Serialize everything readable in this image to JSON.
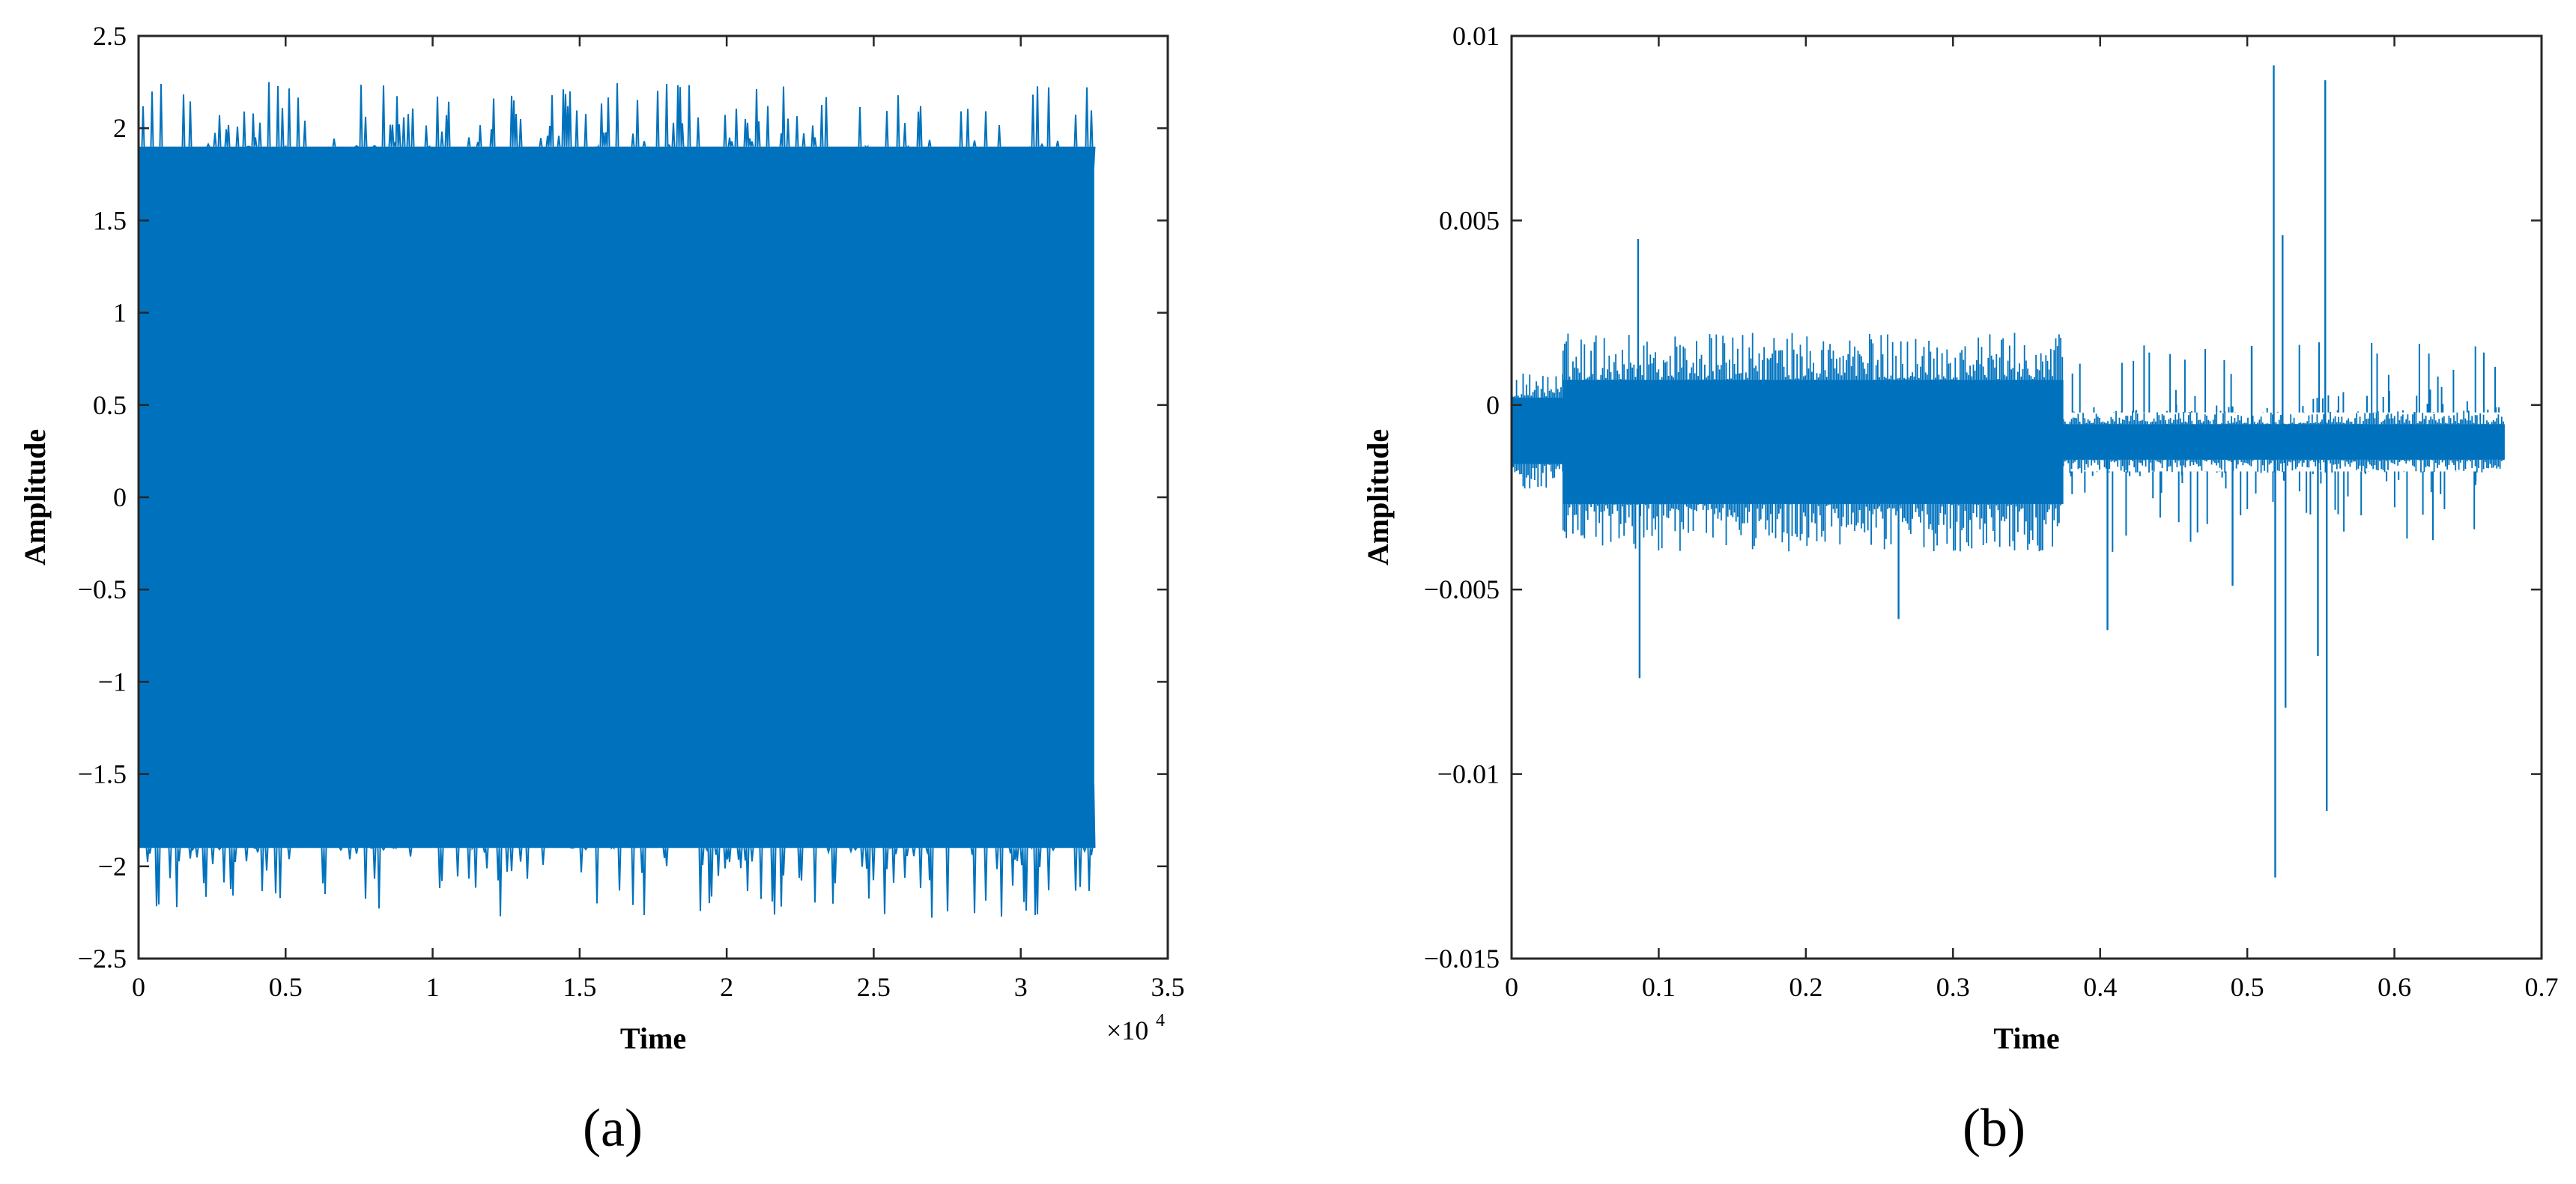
{
  "figure": {
    "panel_labels": [
      "(a)",
      "(b)"
    ]
  },
  "chart_data": [
    {
      "type": "line",
      "panel": "(a)",
      "title": "",
      "xlabel": "Time",
      "ylabel": "Amplitude",
      "xlim": [
        0,
        35000
      ],
      "ylim": [
        -2.5,
        2.5
      ],
      "x_exponent_label": "×10",
      "x_exponent": "4",
      "xticks": [
        0,
        5000,
        10000,
        15000,
        20000,
        25000,
        30000,
        35000
      ],
      "xtick_labels": [
        "0",
        "0.5",
        "1",
        "1.5",
        "2",
        "2.5",
        "3",
        "3.5"
      ],
      "yticks": [
        -2.5,
        -2,
        -1.5,
        -1,
        -0.5,
        0,
        0.5,
        1,
        1.5,
        2,
        2.5
      ],
      "ytick_labels": [
        "−2.5",
        "−2",
        "−1.5",
        "−1",
        "−0.5",
        "0",
        "0.5",
        "1",
        "1.5",
        "2",
        "2.5"
      ],
      "grid": false,
      "color": "#0072BD",
      "series": [
        {
          "signal_start": 0,
          "signal_end": 32500,
          "envelope_upper": 1.9,
          "envelope_lower": -1.9,
          "peak_max": 2.25,
          "peak_min": -2.28
        }
      ]
    },
    {
      "type": "line",
      "panel": "(b)",
      "title": "",
      "xlabel": "Time",
      "ylabel": "Amplitude",
      "xlim": [
        0,
        0.7
      ],
      "ylim": [
        -0.015,
        0.01
      ],
      "xticks": [
        0,
        0.1,
        0.2,
        0.3,
        0.4,
        0.5,
        0.6,
        0.7
      ],
      "xtick_labels": [
        "0",
        "0.1",
        "0.2",
        "0.3",
        "0.4",
        "0.5",
        "0.6",
        "0.7"
      ],
      "yticks": [
        -0.015,
        -0.01,
        -0.005,
        0,
        0.005,
        0.01
      ],
      "ytick_labels": [
        "−0.015",
        "−0.01",
        "−0.005",
        "0",
        "0.005",
        "0.01"
      ],
      "grid": false,
      "color": "#0072BD",
      "series": [
        {
          "signal_start": 0,
          "signal_end": 0.675,
          "segments": [
            {
              "x_start": 0,
              "x_end": 0.035,
              "upper": 0.0008,
              "lower": -0.0022
            },
            {
              "x_start": 0.035,
              "x_end": 0.375,
              "upper": 0.0018,
              "lower": -0.0038
            },
            {
              "x_start": 0.375,
              "x_end": 0.675,
              "upper": -0.0002,
              "lower": -0.0018
            }
          ],
          "spikes": [
            {
              "x": 0.086,
              "y": 0.0045
            },
            {
              "x": 0.087,
              "y": -0.0074
            },
            {
              "x": 0.263,
              "y": -0.0058
            },
            {
              "x": 0.405,
              "y": -0.0061
            },
            {
              "x": 0.49,
              "y": -0.0049
            },
            {
              "x": 0.503,
              "y": 0.0016
            },
            {
              "x": 0.518,
              "y": 0.0092
            },
            {
              "x": 0.519,
              "y": -0.0128
            },
            {
              "x": 0.524,
              "y": 0.0046
            },
            {
              "x": 0.526,
              "y": -0.0082
            },
            {
              "x": 0.548,
              "y": -0.0068
            },
            {
              "x": 0.553,
              "y": 0.0088
            },
            {
              "x": 0.554,
              "y": -0.011
            }
          ]
        }
      ]
    }
  ]
}
